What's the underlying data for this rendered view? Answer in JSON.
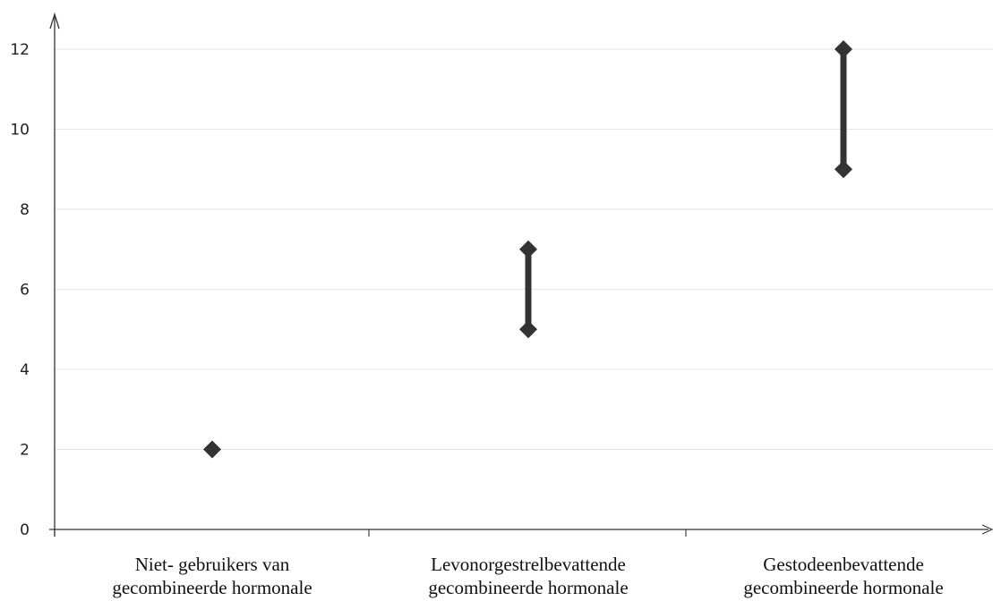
{
  "chart_data": {
    "type": "range",
    "title": "",
    "xlabel": "",
    "ylabel": "",
    "ylim": [
      0,
      13
    ],
    "yticks": [
      0,
      2,
      4,
      6,
      8,
      10,
      12
    ],
    "grid": true,
    "legend": "none",
    "categories": [
      [
        "Niet- gebruikers van",
        "gecombineerde hormonale"
      ],
      [
        "Levonorgestrelbevattende",
        "gecombineerde hormonale"
      ],
      [
        "Gestodeenbevattende",
        "gecombineerde hormonale"
      ]
    ],
    "ranges": [
      {
        "low": 2,
        "high": 2
      },
      {
        "low": 5,
        "high": 7
      },
      {
        "low": 9,
        "high": 12
      }
    ],
    "colors": {
      "marker": "#333333",
      "grid": "#e6e6e6",
      "axis": "#333333"
    }
  }
}
